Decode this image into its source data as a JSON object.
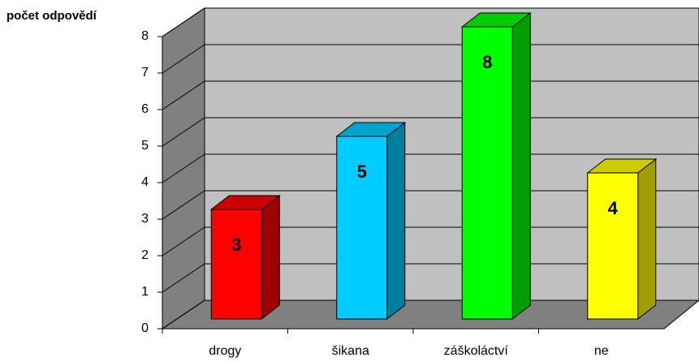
{
  "chart_data": {
    "type": "bar3d",
    "y_axis_label": "počet odpovědí",
    "categories": [
      "drogy",
      "šikana",
      "záškoláctví",
      "ne"
    ],
    "values": [
      3,
      5,
      8,
      4
    ],
    "colors": [
      "#ff0000",
      "#00ccff",
      "#00ff00",
      "#ffff00"
    ],
    "ylim": [
      0,
      8
    ],
    "yticks": [
      0,
      1,
      2,
      3,
      4,
      5,
      6,
      7,
      8
    ],
    "grid": true
  }
}
